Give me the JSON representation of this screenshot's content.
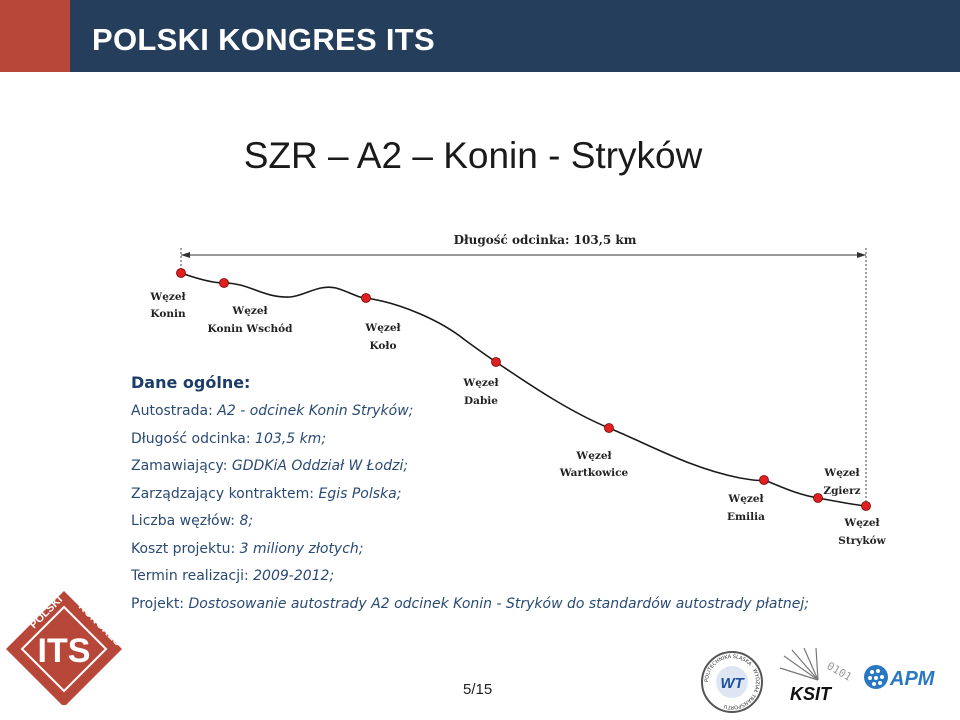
{
  "header": {
    "title": "POLSKI KONGRES ITS"
  },
  "slide": {
    "title": "SZR – A2 – Konin - Stryków",
    "page": "5/15"
  },
  "info": {
    "heading": "Dane ogólne:",
    "rows": [
      {
        "label": "Autostrada: ",
        "value": "A2 - odcinek Konin Stryków;"
      },
      {
        "label": "Długość odcinka: ",
        "value": "103,5 km;"
      },
      {
        "label": "Zamawiający: ",
        "value": "GDDKiA Oddział W Łodzi;"
      },
      {
        "label": "Zarządzający kontraktem: ",
        "value": "Egis Polska;"
      },
      {
        "label": "Liczba węzłów: ",
        "value": "8;"
      },
      {
        "label": "Koszt projektu: ",
        "value": "3 miliony złotych;"
      },
      {
        "label": "Termin realizacji: ",
        "value": "2009-2012;"
      },
      {
        "label": "Projekt: ",
        "value": "Dostosowanie autostrady A2 odcinek Konin - Stryków do standardów autostrady płatnej;"
      }
    ]
  },
  "diagram": {
    "length_label": "Długość odcinka: 103,5 km",
    "route_color": "#1a1a1a",
    "node_color": "#e02020",
    "nodes": [
      {
        "line1": "Węzeł",
        "line2": "Konin"
      },
      {
        "line1": "Węzeł",
        "line2": "Konin Wschód"
      },
      {
        "line1": "Węzeł",
        "line2": "Koło"
      },
      {
        "line1": "Węzeł",
        "line2": "Dabie"
      },
      {
        "line1": "Węzeł",
        "line2": "Wartkowice"
      },
      {
        "line1": "Węzeł",
        "line2": "Emilia"
      },
      {
        "line1": "Węzeł",
        "line2": "Zgierz"
      },
      {
        "line1": "Węzeł",
        "line2": "Stryków"
      }
    ]
  },
  "logos": {
    "its": {
      "top": "POLSKI",
      "right": "KONGRES",
      "main": "ITS"
    },
    "university": {
      "ring": "POLITECHNIKA ŚLĄSKA · WYDZIAŁ TRANSPORTU",
      "mark": "WT"
    },
    "ksit": {
      "text": "KSIT",
      "digits": "0101"
    },
    "apm": {
      "text": "APM"
    }
  },
  "colors": {
    "header_bg": "#243e5c",
    "accent": "#b74739",
    "text_blue": "#2a4a74"
  }
}
